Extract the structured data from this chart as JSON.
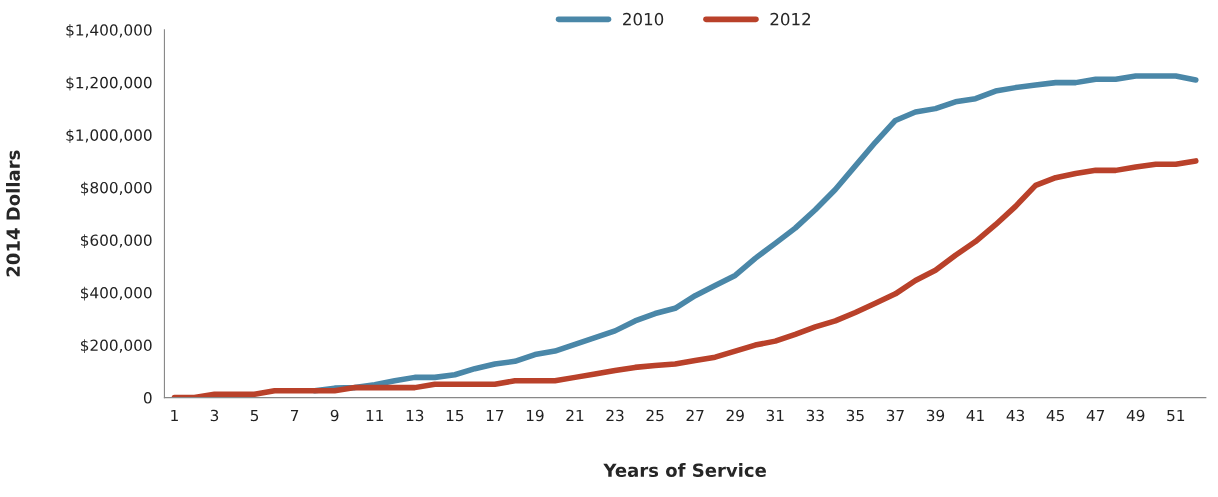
{
  "chart_data": {
    "type": "line",
    "xlabel": "Years of Service",
    "ylabel": "2014 Dollars",
    "categories": [
      "1",
      null,
      "3",
      null,
      "5",
      null,
      "7",
      null,
      "9",
      null,
      "11",
      null,
      "13",
      null,
      "15",
      null,
      "17",
      null,
      "19",
      null,
      "21",
      null,
      "23",
      null,
      "25",
      null,
      "27",
      null,
      "29",
      null,
      "31",
      null,
      "33",
      null,
      "35",
      null,
      "37",
      null,
      "39",
      null,
      "41",
      null,
      "43",
      null,
      "45",
      null,
      "47",
      null,
      "49",
      null,
      "51",
      null
    ],
    "series": [
      {
        "name": "2010",
        "color": "#4a87a8",
        "values": [
          null,
          null,
          null,
          null,
          null,
          null,
          null,
          26000,
          36000,
          38000,
          49000,
          64000,
          77000,
          77000,
          87000,
          110000,
          128000,
          138000,
          164000,
          177000,
          203000,
          228000,
          254000,
          292000,
          320000,
          340000,
          388000,
          427000,
          465000,
          530000,
          587000,
          645000,
          715000,
          792000,
          882000,
          972000,
          1055000,
          1087000,
          1100000,
          1126000,
          1138000,
          1167000,
          1180000,
          1190000,
          1199000,
          1199000,
          1212000,
          1212000,
          1224000,
          1224000,
          1224000,
          1209000
        ]
      },
      {
        "name": "2012",
        "color": "#b9412a",
        "values": [
          0,
          0,
          13000,
          13000,
          13000,
          26000,
          26000,
          26000,
          26000,
          38000,
          38000,
          38000,
          38000,
          51000,
          51000,
          51000,
          51000,
          64000,
          64000,
          64000,
          77000,
          90000,
          103000,
          115000,
          122000,
          128000,
          141000,
          154000,
          177000,
          200000,
          215000,
          241000,
          269000,
          292000,
          324000,
          359000,
          395000,
          446000,
          485000,
          542000,
          594000,
          658000,
          728000,
          808000,
          837000,
          853000,
          865000,
          865000,
          878000,
          888000,
          888000,
          901000
        ]
      }
    ],
    "ylim": [
      0,
      1400000
    ],
    "yticks": [
      0,
      {
        "value": 200000,
        "label": "$200,000"
      },
      {
        "value": 400000,
        "label": "$400,000"
      },
      {
        "value": 600000,
        "label": "$600,000"
      },
      {
        "value": 800000,
        "label": "$800,000"
      },
      {
        "value": 1000000,
        "label": "$1,000,000"
      },
      {
        "value": 1200000,
        "label": "$1,200,000"
      },
      {
        "value": 1400000,
        "label": "$1,400,000"
      }
    ],
    "grid": false,
    "legend": "top"
  }
}
